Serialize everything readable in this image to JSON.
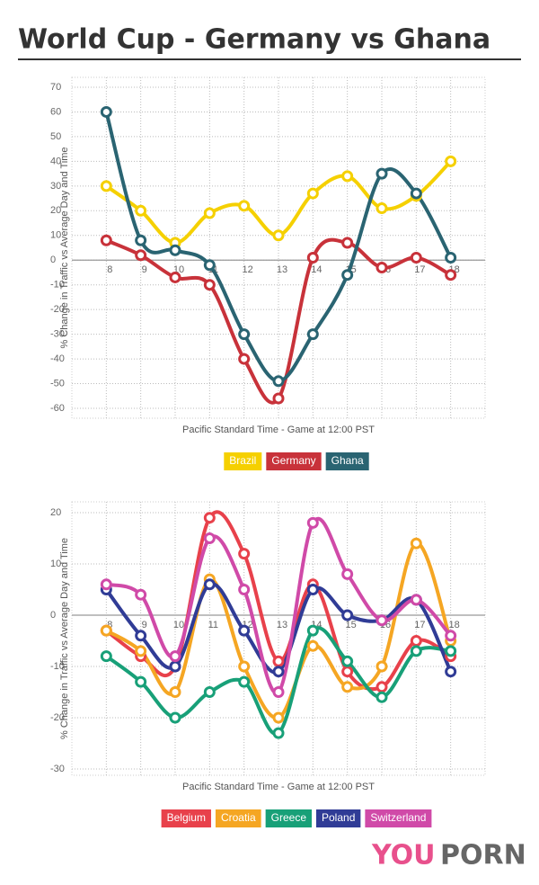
{
  "title": "World Cup - Germany vs Ghana",
  "watermark": {
    "part1": "YOU",
    "part2": "PORN"
  },
  "chart_data": [
    {
      "type": "line",
      "categories": [
        "8",
        "9",
        "10",
        "11",
        "12",
        "13",
        "14",
        "15",
        "16",
        "17",
        "18"
      ],
      "series": [
        {
          "name": "Brazil",
          "color": "#f5d000",
          "values": [
            30,
            20,
            7,
            19,
            22,
            10,
            27,
            34,
            21,
            26,
            40
          ]
        },
        {
          "name": "Germany",
          "color": "#c8323a",
          "values": [
            8,
            2,
            -7,
            -10,
            -40,
            -56,
            1,
            7,
            -3,
            1,
            -6
          ]
        },
        {
          "name": "Ghana",
          "color": "#2a6472",
          "values": [
            60,
            8,
            4,
            -2,
            -30,
            -49,
            -30,
            -6,
            35,
            27,
            1
          ]
        }
      ],
      "ylim": [
        -60,
        70
      ],
      "yticks": [
        70,
        60,
        50,
        40,
        30,
        20,
        10,
        0,
        -10,
        -20,
        -30,
        -40,
        -50,
        -60
      ],
      "ylabel": "% Change in Traffic vs Average Day and Time",
      "xlabel": "Pacific Standard Time - Game at 12:00 PST",
      "grid": true
    },
    {
      "type": "line",
      "categories": [
        "8",
        "9",
        "10",
        "11",
        "12",
        "13",
        "14",
        "15",
        "16",
        "17",
        "18"
      ],
      "series": [
        {
          "name": "Belgium",
          "color": "#e8414b",
          "values": [
            -3,
            -8,
            -10,
            19,
            12,
            -9,
            6,
            -11,
            -14,
            -5,
            -8
          ]
        },
        {
          "name": "Croatia",
          "color": "#f5a623",
          "values": [
            -3,
            -7,
            -15,
            7,
            -10,
            -20,
            -6,
            -14,
            -10,
            14,
            -5
          ]
        },
        {
          "name": "Greece",
          "color": "#18a078",
          "values": [
            -8,
            -13,
            -20,
            -15,
            -13,
            -23,
            -3,
            -9,
            -16,
            -7,
            -7
          ]
        },
        {
          "name": "Poland",
          "color": "#303c96",
          "values": [
            5,
            -4,
            -10,
            6,
            -3,
            -11,
            5,
            0,
            -1,
            3,
            -11
          ]
        },
        {
          "name": "Switzerland",
          "color": "#d04aa8",
          "values": [
            6,
            4,
            -8,
            15,
            5,
            -15,
            18,
            8,
            -1,
            3,
            -4
          ]
        }
      ],
      "ylim": [
        -30,
        20
      ],
      "yticks": [
        20,
        10,
        0,
        -10,
        -20,
        -30
      ],
      "ylabel": "% Change in Traffic vs Average Day and Time",
      "xlabel": "Pacific Standard Time - Game at 12:00 PST",
      "grid": true
    }
  ]
}
